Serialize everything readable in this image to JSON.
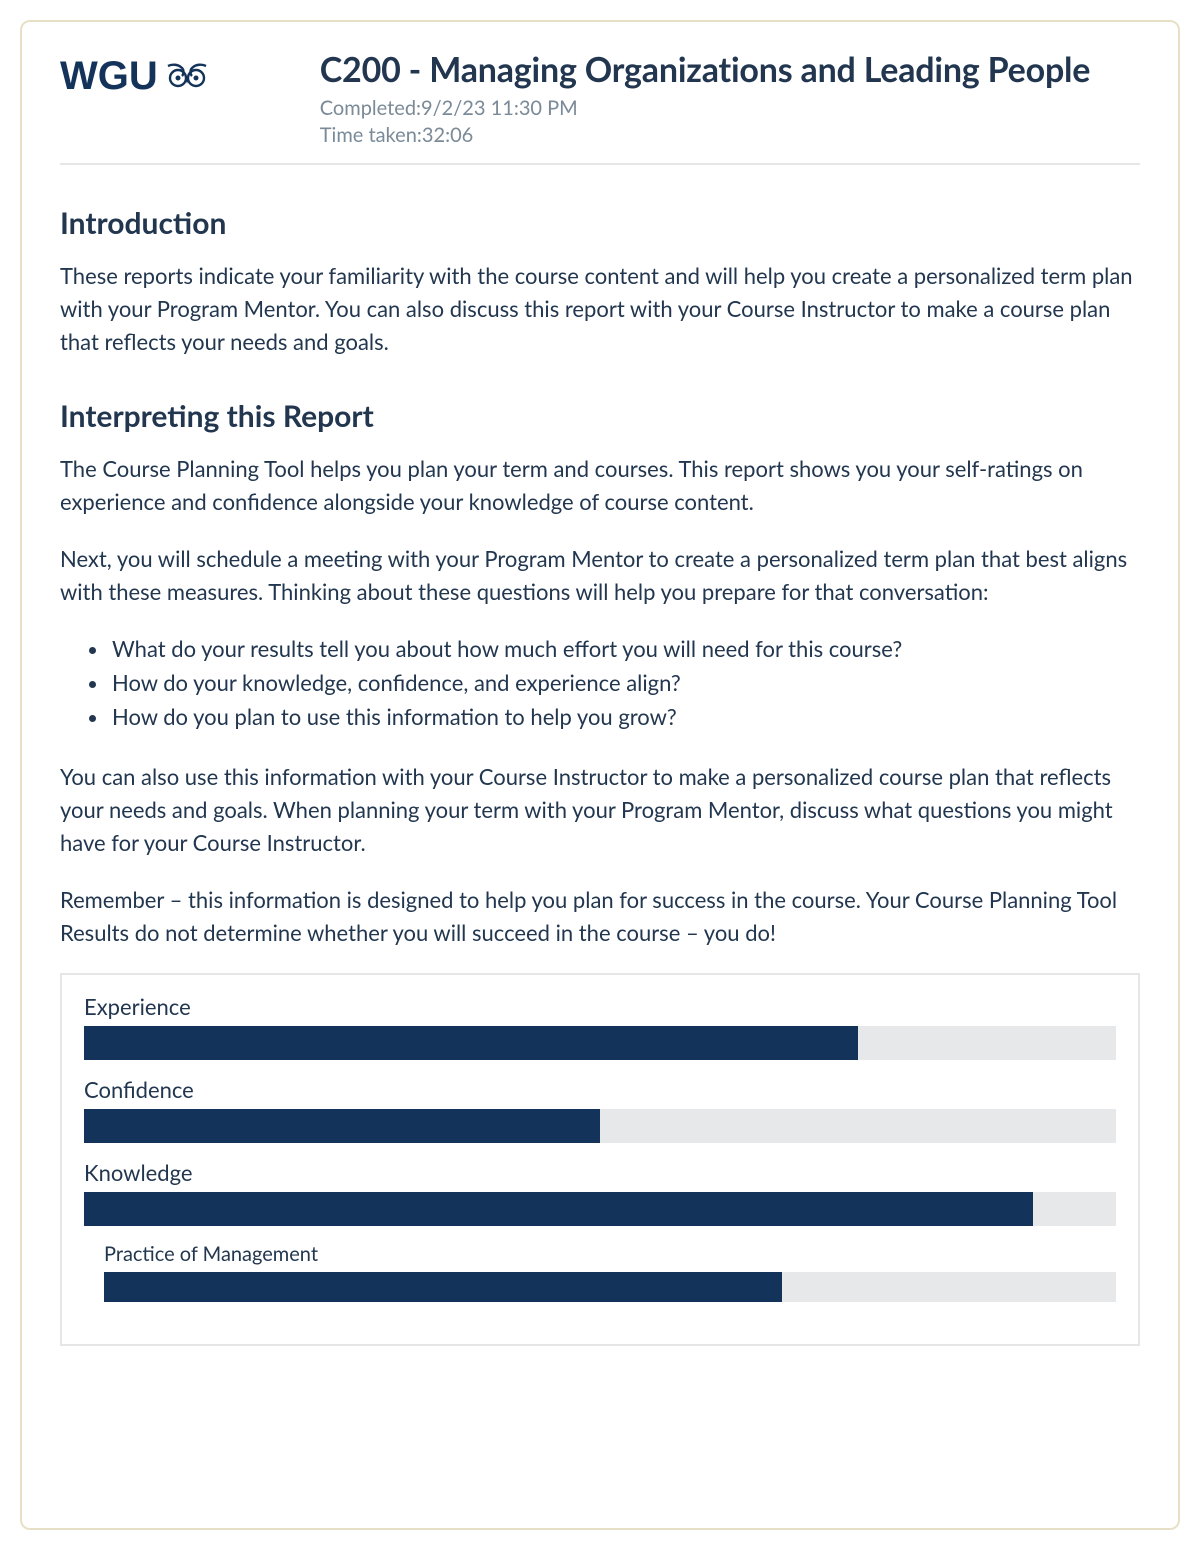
{
  "brand": {
    "name": "WGU",
    "logo_color": "#14335a"
  },
  "header": {
    "course_title": "C200 - Managing Organizations and Leading People",
    "completed_label": "Completed:",
    "completed_value": "9/2/23 11:30 PM",
    "time_taken_label": "Time taken:",
    "time_taken_value": "32:06"
  },
  "sections": {
    "intro_heading": "Introduction",
    "intro_body": "These reports indicate your familiarity with the course content and will help you create a personalized term plan with your Program Mentor. You can also discuss this report with your Course Instructor to make a course plan that reflects your needs and goals.",
    "interpret_heading": "Interpreting this Report",
    "interpret_p1": "The Course Planning Tool helps you plan your term and courses. This report shows you your self-ratings on experience and confidence alongside your knowledge of course content.",
    "interpret_p2": "Next, you will schedule a meeting with your Program Mentor to create a personalized term plan that best aligns with these measures. Thinking about these questions will help you prepare for that conversation:",
    "bullets": [
      "What do your results tell you about how much effort you will need for this course?",
      "How do your knowledge, confidence, and experience align?",
      "How do you plan to use this information to help you grow?"
    ],
    "interpret_p3": "You can also use this information with your Course Instructor to make a personalized course plan that reflects your needs and goals. When planning your term with your Program Mentor, discuss what questions you might have for your Course Instructor.",
    "interpret_p4": "Remember – this information is designed to help you plan for success in the course. Your Course Planning Tool Results do not determine whether you will succeed in the course – you do!"
  },
  "bars": {
    "track_color": "#e6e8ea",
    "fill_color": "#14335a",
    "items": [
      {
        "label": "Experience",
        "percent": 75,
        "sub": false
      },
      {
        "label": "Confidence",
        "percent": 50,
        "sub": false
      },
      {
        "label": "Knowledge",
        "percent": 92,
        "sub": false
      },
      {
        "label": "Practice of Management",
        "percent": 67,
        "sub": true
      }
    ]
  }
}
